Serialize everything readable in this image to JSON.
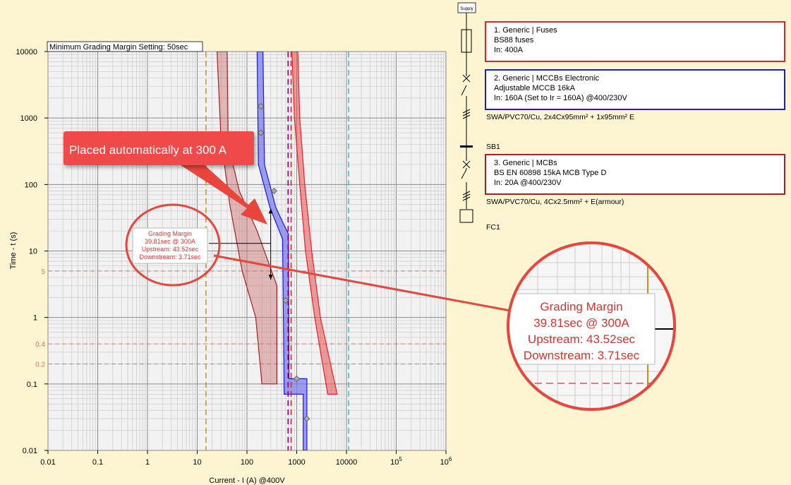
{
  "plot": {
    "setting_label": "Minimum Grading Margin Setting: 50sec",
    "xlabel": "Current - I (A) @400V",
    "ylabel": "Time - t (s)",
    "x_ticks": [
      {
        "v": 0.01,
        "l": "0.01",
        "sup": ""
      },
      {
        "v": 0.1,
        "l": "0.1",
        "sup": ""
      },
      {
        "v": 1,
        "l": "1",
        "sup": ""
      },
      {
        "v": 10,
        "l": "10",
        "sup": ""
      },
      {
        "v": 100,
        "l": "100",
        "sup": ""
      },
      {
        "v": 1000,
        "l": "1000",
        "sup": ""
      },
      {
        "v": 10000,
        "l": "10000",
        "sup": ""
      },
      {
        "v": 100000,
        "l": "10",
        "sup": "5"
      },
      {
        "v": 1000000,
        "l": "10",
        "sup": "6"
      }
    ],
    "y_ticks": [
      {
        "v": 10000,
        "l": "10000"
      },
      {
        "v": 1000,
        "l": "1000"
      },
      {
        "v": 100,
        "l": "100"
      },
      {
        "v": 10,
        "l": "10"
      },
      {
        "v": 1,
        "l": "1"
      },
      {
        "v": 0.1,
        "l": "0.1"
      },
      {
        "v": 0.01,
        "l": "0.01"
      }
    ],
    "ref_lines": [
      {
        "v": 5,
        "l": "5"
      },
      {
        "v": 0.4,
        "l": "0.4"
      },
      {
        "v": 0.2,
        "l": "0.2"
      }
    ]
  },
  "callout": {
    "label": "Placed automatically at 300 A"
  },
  "annotation": {
    "title": "Grading Margin",
    "line1": "39.81sec @ 300A",
    "line2": "Upstream: 43.52sec",
    "line3": "Downstream: 3.71sec"
  },
  "single_line": {
    "supply_label": "Supply",
    "sb_label": "SB1",
    "fc_label": "FC1",
    "cable1": "SWA/PVC70/Cu, 2x4Cx95mm² + 1x95mm² E",
    "cable2": "SWA/PVC70/Cu, 4Cx2.5mm² + E(armour)"
  },
  "devices": [
    {
      "line1": "1. Generic | Fuses",
      "line2": "BS88 fuses",
      "line3": "In: 400A",
      "color": "#e8202a"
    },
    {
      "line1": "2. Generic | MCCBs Electronic",
      "line2": "Adjustable MCCB 16kA",
      "line3": "In: 160A (Set to Ir = 160A) @400/230V",
      "color": "#1a1ae0"
    },
    {
      "line1": "3. Generic | MCBs",
      "line2": "BS EN 60898 15kA MCB Type D",
      "line3": "In: 20A @400/230V",
      "color": "#a82020"
    }
  ],
  "chart_data": {
    "type": "line",
    "xscale": "log",
    "yscale": "log",
    "xlim": [
      0.01,
      1000000
    ],
    "ylim": [
      0.01,
      10000
    ],
    "xlabel": "Current - I (A) @400V",
    "ylabel": "Time - t (s)",
    "grid": true,
    "series": [
      {
        "name": "1. Generic | Fuses",
        "color": "#e8202a",
        "band_left": [
          [
            800,
            10000
          ],
          [
            900,
            1000
          ],
          [
            1150,
            100
          ],
          [
            1500,
            10
          ],
          [
            2300,
            1
          ],
          [
            4200,
            0.07
          ]
        ],
        "band_right": [
          [
            1050,
            10000
          ],
          [
            1150,
            1000
          ],
          [
            1450,
            100
          ],
          [
            2000,
            10
          ],
          [
            3000,
            1
          ],
          [
            6500,
            0.07
          ]
        ]
      },
      {
        "name": "2. Generic | MCCBs Electronic",
        "color": "#1a1ae0",
        "band_left": [
          [
            160,
            10000
          ],
          [
            170,
            200
          ],
          [
            290,
            45
          ],
          [
            520,
            15
          ],
          [
            560,
            0.07
          ],
          [
            1350,
            0.07
          ],
          [
            1350,
            0.01
          ]
        ],
        "band_right": [
          [
            210,
            10000
          ],
          [
            225,
            200
          ],
          [
            380,
            45
          ],
          [
            680,
            18
          ],
          [
            700,
            0.12
          ],
          [
            1600,
            0.12
          ],
          [
            1600,
            0.01
          ]
        ],
        "markers": [
          [
            190,
            1500
          ],
          [
            190,
            600
          ],
          [
            350,
            80
          ],
          [
            600,
            1.8
          ],
          [
            1000,
            0.12
          ],
          [
            1600,
            0.03
          ]
        ]
      },
      {
        "name": "3. Generic | MCBs",
        "color": "#a82020",
        "band_left": [
          [
            25,
            10000
          ],
          [
            30,
            500
          ],
          [
            45,
            50
          ],
          [
            80,
            5
          ],
          [
            150,
            1
          ],
          [
            200,
            0.1
          ]
        ],
        "band_right": [
          [
            40,
            10000
          ],
          [
            42,
            400
          ],
          [
            70,
            80
          ],
          [
            160,
            20
          ],
          [
            400,
            3
          ],
          [
            400,
            0.1
          ]
        ]
      }
    ],
    "vlines": [
      {
        "x": 15,
        "color": "#c89020"
      },
      {
        "x": 670,
        "color": "#800080"
      },
      {
        "x": 770,
        "color": "#c03030"
      },
      {
        "x": 11000,
        "color": "#20c8e8"
      }
    ],
    "grading_margin": {
      "current": 300,
      "upstream": 43.52,
      "downstream": 3.71,
      "margin": 39.81
    }
  }
}
